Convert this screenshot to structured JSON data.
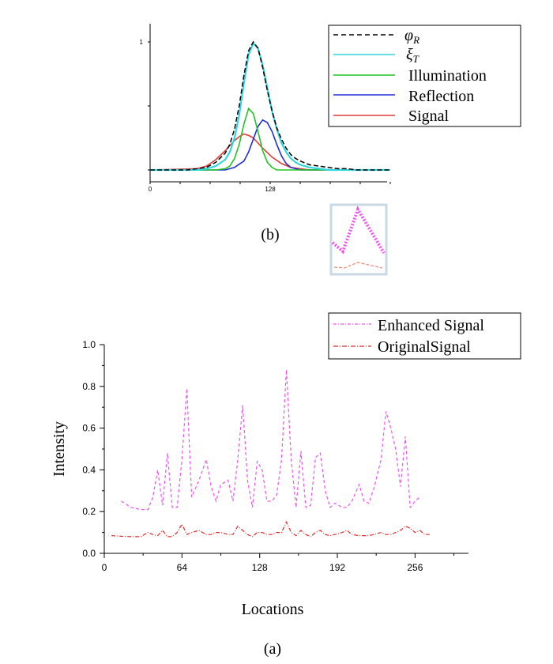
{
  "chart_data": [
    {
      "type": "line",
      "caption": "(b)",
      "x_ticks": [
        "0",
        "128"
      ],
      "y_ticks": [
        "1"
      ],
      "xlim": [
        0,
        256
      ],
      "ylim": [
        0,
        1
      ],
      "grid": false,
      "legend_position": "top-right",
      "series": [
        {
          "name": "φ_R",
          "legend_symbol": "φR",
          "color": "#000000",
          "style": "dashed",
          "x": [
            0,
            20,
            40,
            50,
            60,
            70,
            80,
            85,
            90,
            95,
            100,
            105,
            110,
            115,
            120,
            125,
            130,
            135,
            140,
            145,
            150,
            155,
            160,
            170,
            180,
            190,
            200,
            210,
            220,
            230,
            256
          ],
          "y": [
            0.0,
            0.0,
            0.0,
            0.01,
            0.02,
            0.06,
            0.13,
            0.2,
            0.32,
            0.5,
            0.74,
            0.93,
            1.0,
            0.95,
            0.8,
            0.62,
            0.46,
            0.33,
            0.24,
            0.17,
            0.12,
            0.09,
            0.07,
            0.04,
            0.03,
            0.02,
            0.01,
            0.01,
            0.0,
            0.0,
            0.0
          ]
        },
        {
          "name": "ξ_T",
          "legend_symbol": "ξT",
          "color": "#33d6dd",
          "style": "solid",
          "x": [
            0,
            20,
            40,
            50,
            60,
            70,
            80,
            85,
            90,
            95,
            100,
            105,
            110,
            115,
            120,
            125,
            130,
            135,
            140,
            145,
            150,
            155,
            160,
            170,
            180,
            190,
            200,
            210,
            220,
            230,
            256
          ],
          "y": [
            0.0,
            0.0,
            0.0,
            0.0,
            0.01,
            0.03,
            0.08,
            0.14,
            0.25,
            0.43,
            0.68,
            0.9,
            0.99,
            0.95,
            0.82,
            0.64,
            0.46,
            0.32,
            0.21,
            0.14,
            0.09,
            0.06,
            0.04,
            0.02,
            0.01,
            0.0,
            0.0,
            0.0,
            0.0,
            0.0,
            0.0
          ]
        },
        {
          "name": "Illumination",
          "color": "#22c422",
          "style": "solid",
          "x": [
            0,
            70,
            80,
            85,
            90,
            95,
            100,
            105,
            110,
            115,
            120,
            125,
            130,
            135,
            140,
            150,
            256
          ],
          "y": [
            0.0,
            0.0,
            0.01,
            0.03,
            0.09,
            0.2,
            0.36,
            0.48,
            0.44,
            0.3,
            0.15,
            0.06,
            0.02,
            0.0,
            0.0,
            0.0,
            0.0
          ]
        },
        {
          "name": "Reflection",
          "color": "#1e2ed6",
          "style": "solid",
          "x": [
            0,
            80,
            90,
            100,
            105,
            110,
            115,
            120,
            125,
            130,
            135,
            140,
            145,
            150,
            155,
            160,
            170,
            256
          ],
          "y": [
            0.0,
            0.0,
            0.02,
            0.07,
            0.14,
            0.24,
            0.34,
            0.39,
            0.37,
            0.3,
            0.2,
            0.11,
            0.05,
            0.02,
            0.01,
            0.0,
            0.0,
            0.0
          ]
        },
        {
          "name": "Signal",
          "color": "#e03a3a",
          "style": "solid",
          "x": [
            0,
            50,
            60,
            70,
            80,
            90,
            95,
            100,
            105,
            110,
            115,
            120,
            130,
            140,
            150,
            160,
            170,
            180,
            256
          ],
          "y": [
            0.0,
            0.01,
            0.03,
            0.08,
            0.15,
            0.23,
            0.26,
            0.28,
            0.27,
            0.25,
            0.21,
            0.17,
            0.1,
            0.05,
            0.02,
            0.01,
            0.0,
            0.0,
            0.0
          ]
        }
      ]
    },
    {
      "type": "line",
      "caption": "(a)",
      "xlabel": "Locations",
      "ylabel": "Intensity",
      "x_ticks": [
        "0",
        "64",
        "128",
        "192",
        "256"
      ],
      "y_ticks": [
        "0.0",
        "0.2",
        "0.4",
        "0.6",
        "0.8",
        "1.0"
      ],
      "xlim": [
        0,
        300
      ],
      "ylim": [
        0,
        1.0
      ],
      "grid": false,
      "legend_position": "top-right",
      "series": [
        {
          "name": "Enhanced Signal",
          "color": "#ee55ee",
          "style": "dashed",
          "x": [
            14,
            22,
            30,
            36,
            40,
            44,
            48,
            52,
            56,
            60,
            64,
            68,
            72,
            78,
            84,
            88,
            92,
            96,
            102,
            106,
            110,
            114,
            118,
            122,
            126,
            130,
            134,
            138,
            142,
            146,
            150,
            154,
            158,
            162,
            166,
            170,
            174,
            178,
            182,
            186,
            190,
            196,
            200,
            204,
            210,
            214,
            218,
            222,
            228,
            232,
            236,
            240,
            244,
            248,
            252,
            256,
            260
          ],
          "y": [
            0.25,
            0.22,
            0.21,
            0.21,
            0.27,
            0.4,
            0.23,
            0.48,
            0.22,
            0.22,
            0.45,
            0.79,
            0.27,
            0.35,
            0.45,
            0.32,
            0.25,
            0.33,
            0.35,
            0.25,
            0.45,
            0.71,
            0.35,
            0.22,
            0.44,
            0.4,
            0.25,
            0.25,
            0.28,
            0.45,
            0.88,
            0.45,
            0.22,
            0.49,
            0.22,
            0.23,
            0.46,
            0.48,
            0.3,
            0.22,
            0.24,
            0.22,
            0.22,
            0.25,
            0.33,
            0.25,
            0.24,
            0.31,
            0.45,
            0.68,
            0.6,
            0.5,
            0.32,
            0.56,
            0.22,
            0.25,
            0.27
          ]
        },
        {
          "name": "OriginalSignal",
          "color": "#e02a2a",
          "style": "dashdot",
          "x": [
            6,
            14,
            22,
            30,
            36,
            40,
            44,
            48,
            52,
            56,
            60,
            64,
            68,
            72,
            78,
            84,
            88,
            92,
            96,
            102,
            106,
            110,
            114,
            118,
            122,
            126,
            130,
            134,
            138,
            142,
            146,
            150,
            154,
            158,
            162,
            166,
            170,
            174,
            178,
            182,
            186,
            190,
            196,
            200,
            204,
            210,
            214,
            218,
            222,
            228,
            232,
            236,
            240,
            244,
            248,
            252,
            256,
            260,
            264,
            268
          ],
          "y": [
            0.085,
            0.082,
            0.08,
            0.08,
            0.1,
            0.09,
            0.085,
            0.11,
            0.08,
            0.08,
            0.1,
            0.14,
            0.09,
            0.1,
            0.11,
            0.09,
            0.09,
            0.1,
            0.1,
            0.09,
            0.09,
            0.13,
            0.11,
            0.09,
            0.08,
            0.1,
            0.1,
            0.09,
            0.09,
            0.1,
            0.1,
            0.15,
            0.1,
            0.085,
            0.11,
            0.09,
            0.08,
            0.1,
            0.11,
            0.09,
            0.085,
            0.09,
            0.1,
            0.11,
            0.09,
            0.085,
            0.085,
            0.085,
            0.09,
            0.1,
            0.09,
            0.09,
            0.1,
            0.11,
            0.13,
            0.12,
            0.1,
            0.11,
            0.09,
            0.09
          ]
        }
      ]
    }
  ],
  "inset": {
    "border_color": "#c8d8e4",
    "upper_color": "#ee55ee",
    "lower_color": "#f08870"
  }
}
